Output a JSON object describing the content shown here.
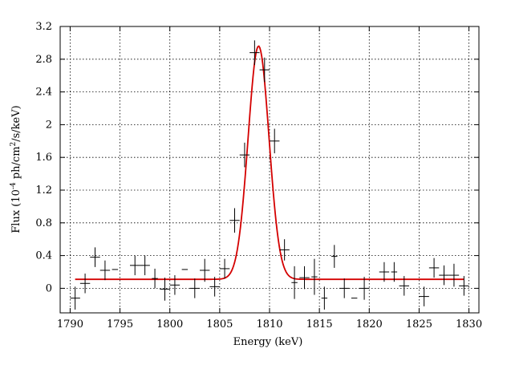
{
  "chart_data": {
    "type": "scatter",
    "xlabel": "Energy (keV)",
    "ylabel": "Flux (10",
    "ylabel_exp1": "-4",
    "ylabel_mid": " ph/cm",
    "ylabel_exp2": "2",
    "ylabel_tail": "/s/keV)",
    "xlim": [
      1789,
      1831
    ],
    "ylim": [
      -0.3,
      3.2
    ],
    "xticks": [
      1790,
      1795,
      1800,
      1805,
      1810,
      1815,
      1820,
      1825,
      1830
    ],
    "yticks": [
      0,
      0.4,
      0.8,
      1.2,
      1.6,
      2,
      2.4,
      2.8,
      3.2
    ],
    "ytick_labels": [
      "0",
      "0.4",
      "0.8",
      "1.2",
      "1.6",
      "2",
      "2.4",
      "2.8",
      "3.2"
    ],
    "grid": true,
    "points": [
      {
        "x": 1790.5,
        "y": -0.12,
        "xerr": 0.5,
        "yerr": 0.14
      },
      {
        "x": 1791.5,
        "y": 0.06,
        "xerr": 0.5,
        "yerr": 0.12
      },
      {
        "x": 1792.5,
        "y": 0.38,
        "xerr": 0.5,
        "yerr": 0.12
      },
      {
        "x": 1793.5,
        "y": 0.22,
        "xerr": 0.5,
        "yerr": 0.12
      },
      {
        "x": 1794.5,
        "y": 0.23,
        "xerr": 0.3,
        "yerr": 0.0
      },
      {
        "x": 1796.5,
        "y": 0.28,
        "xerr": 0.5,
        "yerr": 0.12
      },
      {
        "x": 1797.5,
        "y": 0.28,
        "xerr": 0.5,
        "yerr": 0.12
      },
      {
        "x": 1798.5,
        "y": 0.12,
        "xerr": 0.3,
        "yerr": 0.12
      },
      {
        "x": 1799.5,
        "y": -0.01,
        "xerr": 0.5,
        "yerr": 0.14
      },
      {
        "x": 1800.5,
        "y": 0.04,
        "xerr": 0.5,
        "yerr": 0.12
      },
      {
        "x": 1801.5,
        "y": 0.23,
        "xerr": 0.3,
        "yerr": 0.0
      },
      {
        "x": 1802.5,
        "y": 0.0,
        "xerr": 0.5,
        "yerr": 0.12
      },
      {
        "x": 1803.5,
        "y": 0.22,
        "xerr": 0.5,
        "yerr": 0.14
      },
      {
        "x": 1804.5,
        "y": 0.02,
        "xerr": 0.5,
        "yerr": 0.12
      },
      {
        "x": 1805.5,
        "y": 0.24,
        "xerr": 0.5,
        "yerr": 0.12
      },
      {
        "x": 1806.5,
        "y": 0.83,
        "xerr": 0.5,
        "yerr": 0.15
      },
      {
        "x": 1807.5,
        "y": 1.63,
        "xerr": 0.5,
        "yerr": 0.15
      },
      {
        "x": 1808.5,
        "y": 2.88,
        "xerr": 0.5,
        "yerr": 0.15
      },
      {
        "x": 1809.5,
        "y": 2.67,
        "xerr": 0.5,
        "yerr": 0.15
      },
      {
        "x": 1810.5,
        "y": 1.8,
        "xerr": 0.5,
        "yerr": 0.15
      },
      {
        "x": 1811.5,
        "y": 0.47,
        "xerr": 0.5,
        "yerr": 0.13
      },
      {
        "x": 1812.5,
        "y": 0.07,
        "xerr": 0.3,
        "yerr": 0.2
      },
      {
        "x": 1813.5,
        "y": 0.13,
        "xerr": 0.5,
        "yerr": 0.14
      },
      {
        "x": 1814.5,
        "y": 0.14,
        "xerr": 0.3,
        "yerr": 0.22
      },
      {
        "x": 1815.5,
        "y": -0.12,
        "xerr": 0.3,
        "yerr": 0.14
      },
      {
        "x": 1816.5,
        "y": 0.39,
        "xerr": 0.3,
        "yerr": 0.14
      },
      {
        "x": 1817.5,
        "y": 0.0,
        "xerr": 0.5,
        "yerr": 0.12
      },
      {
        "x": 1818.5,
        "y": -0.12,
        "xerr": 0.3,
        "yerr": 0.0
      },
      {
        "x": 1819.5,
        "y": 0.0,
        "xerr": 0.5,
        "yerr": 0.14
      },
      {
        "x": 1821.5,
        "y": 0.2,
        "xerr": 0.5,
        "yerr": 0.12
      },
      {
        "x": 1822.5,
        "y": 0.2,
        "xerr": 0.3,
        "yerr": 0.12
      },
      {
        "x": 1823.5,
        "y": 0.03,
        "xerr": 0.5,
        "yerr": 0.12
      },
      {
        "x": 1825.5,
        "y": -0.1,
        "xerr": 0.5,
        "yerr": 0.12
      },
      {
        "x": 1826.5,
        "y": 0.25,
        "xerr": 0.5,
        "yerr": 0.12
      },
      {
        "x": 1827.5,
        "y": 0.16,
        "xerr": 0.5,
        "yerr": 0.12
      },
      {
        "x": 1828.5,
        "y": 0.16,
        "xerr": 0.5,
        "yerr": 0.14
      },
      {
        "x": 1829.5,
        "y": 0.03,
        "xerr": 0.5,
        "yerr": 0.12
      }
    ],
    "fit": {
      "type": "gaussian-plus-constant",
      "x_range": [
        1790.5,
        1829.5
      ],
      "baseline": 0.11,
      "amplitude": 2.85,
      "center": 1808.9,
      "sigma": 1.05,
      "color": "#d40000"
    }
  }
}
